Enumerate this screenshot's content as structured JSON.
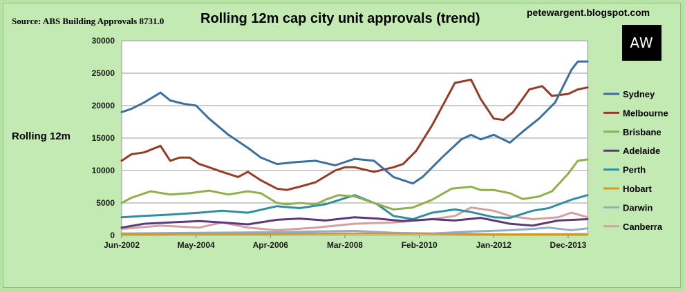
{
  "header": {
    "source": "Source: ABS Building Approvals 8731.0",
    "blog": "petewargent.blogspot.com",
    "logo_text": "AW"
  },
  "chart_data": {
    "type": "line",
    "title": "Rolling 12m cap city unit approvals (trend)",
    "ylabel": "Rolling 12m",
    "xlabel": "",
    "ylim": [
      0,
      30000
    ],
    "yticks": [
      0,
      5000,
      10000,
      15000,
      20000,
      25000,
      30000
    ],
    "xlim": [
      "2002-06",
      "2014-06"
    ],
    "xticks": [
      "Jun-2002",
      "May-2004",
      "Apr-2006",
      "Mar-2008",
      "Feb-2010",
      "Jan-2012",
      "Dec-2013"
    ],
    "grid": "horizontal",
    "legend": "right",
    "series": [
      {
        "name": "Sydney",
        "color": "#3b6fa0",
        "x": [
          "2002-06",
          "2002-09",
          "2003-01",
          "2003-06",
          "2003-09",
          "2004-01",
          "2004-05",
          "2004-09",
          "2005-03",
          "2005-09",
          "2006-01",
          "2006-06",
          "2006-12",
          "2007-06",
          "2007-12",
          "2008-06",
          "2008-12",
          "2009-06",
          "2009-12",
          "2010-03",
          "2010-09",
          "2011-03",
          "2011-06",
          "2011-09",
          "2012-01",
          "2012-06",
          "2012-10",
          "2013-03",
          "2013-08",
          "2014-01",
          "2014-03",
          "2014-06"
        ],
        "y": [
          19000,
          19500,
          20500,
          22000,
          20800,
          20300,
          20000,
          18000,
          15500,
          13500,
          12000,
          11000,
          11300,
          11500,
          10800,
          11800,
          11500,
          9000,
          8000,
          9000,
          12000,
          14800,
          15500,
          14800,
          15500,
          14300,
          16000,
          18000,
          20500,
          25500,
          26800,
          26800
        ]
      },
      {
        "name": "Melbourne",
        "color": "#953b26",
        "x": [
          "2002-06",
          "2002-09",
          "2003-01",
          "2003-06",
          "2003-09",
          "2003-12",
          "2004-03",
          "2004-06",
          "2004-09",
          "2005-01",
          "2005-06",
          "2005-09",
          "2006-01",
          "2006-06",
          "2006-09",
          "2007-01",
          "2007-06",
          "2007-12",
          "2008-03",
          "2008-06",
          "2008-12",
          "2009-06",
          "2009-09",
          "2010-01",
          "2010-06",
          "2011-01",
          "2011-06",
          "2011-09",
          "2012-01",
          "2012-04",
          "2012-07",
          "2012-12",
          "2013-04",
          "2013-07",
          "2013-12",
          "2014-03",
          "2014-06"
        ],
        "y": [
          11500,
          12500,
          12800,
          13800,
          11500,
          12000,
          12000,
          11000,
          10500,
          9800,
          9000,
          9800,
          8500,
          7200,
          7000,
          7500,
          8200,
          10000,
          10500,
          10500,
          9800,
          10500,
          11000,
          13000,
          17000,
          23500,
          24000,
          21000,
          18000,
          17800,
          19000,
          22500,
          23000,
          21500,
          21800,
          22500,
          22800
        ]
      },
      {
        "name": "Brisbane",
        "color": "#8fb04a",
        "x": [
          "2002-06",
          "2002-09",
          "2003-03",
          "2003-09",
          "2004-03",
          "2004-09",
          "2005-03",
          "2005-09",
          "2006-01",
          "2006-06",
          "2006-09",
          "2007-01",
          "2007-06",
          "2007-09",
          "2008-01",
          "2008-06",
          "2008-12",
          "2009-06",
          "2009-12",
          "2010-06",
          "2010-12",
          "2011-06",
          "2011-09",
          "2012-01",
          "2012-06",
          "2012-10",
          "2013-03",
          "2013-07",
          "2013-12",
          "2014-03",
          "2014-06"
        ],
        "y": [
          5000,
          5800,
          6800,
          6300,
          6500,
          6900,
          6300,
          6800,
          6500,
          5000,
          4800,
          5000,
          4800,
          5500,
          6200,
          6000,
          5000,
          4000,
          4300,
          5500,
          7200,
          7500,
          7000,
          7000,
          6500,
          5600,
          6000,
          6800,
          9500,
          11500,
          11700
        ]
      },
      {
        "name": "Adelaide",
        "color": "#5b3a78",
        "x": [
          "2002-06",
          "2003-01",
          "2003-09",
          "2004-06",
          "2005-01",
          "2005-09",
          "2006-06",
          "2007-01",
          "2007-09",
          "2008-06",
          "2009-01",
          "2009-09",
          "2010-06",
          "2011-01",
          "2011-09",
          "2012-06",
          "2013-01",
          "2013-09",
          "2014-06"
        ],
        "y": [
          1200,
          1800,
          2000,
          2200,
          2000,
          1700,
          2400,
          2600,
          2300,
          2800,
          2600,
          2200,
          2500,
          2300,
          2700,
          1800,
          1500,
          2300,
          2500
        ]
      },
      {
        "name": "Perth",
        "color": "#2f8fa0",
        "x": [
          "2002-06",
          "2003-01",
          "2003-09",
          "2004-06",
          "2005-01",
          "2005-09",
          "2006-06",
          "2007-01",
          "2007-09",
          "2008-06",
          "2009-01",
          "2009-06",
          "2009-12",
          "2010-06",
          "2011-01",
          "2011-06",
          "2012-01",
          "2012-06",
          "2013-01",
          "2013-06",
          "2014-01",
          "2014-06"
        ],
        "y": [
          2800,
          3000,
          3200,
          3500,
          3800,
          3500,
          4500,
          4200,
          4800,
          6200,
          4800,
          3000,
          2500,
          3500,
          4000,
          3600,
          2800,
          2700,
          3800,
          4200,
          5500,
          6200
        ]
      },
      {
        "name": "Hobart",
        "color": "#d69a20",
        "x": [
          "2002-06",
          "2004-06",
          "2006-06",
          "2008-06",
          "2010-06",
          "2012-06",
          "2014-06"
        ],
        "y": [
          200,
          250,
          250,
          300,
          280,
          150,
          200
        ]
      },
      {
        "name": "Darwin",
        "color": "#93aec9",
        "x": [
          "2002-06",
          "2004-06",
          "2006-06",
          "2008-06",
          "2009-06",
          "2010-06",
          "2011-06",
          "2012-06",
          "2013-01",
          "2013-06",
          "2014-01",
          "2014-06"
        ],
        "y": [
          300,
          400,
          500,
          700,
          400,
          300,
          600,
          800,
          1000,
          1200,
          800,
          1100
        ]
      },
      {
        "name": "Canberra",
        "color": "#d4a0a0",
        "x": [
          "2002-06",
          "2003-06",
          "2004-06",
          "2005-01",
          "2005-09",
          "2006-06",
          "2007-06",
          "2008-06",
          "2009-06",
          "2010-06",
          "2011-01",
          "2011-06",
          "2012-01",
          "2012-06",
          "2013-01",
          "2013-09",
          "2014-01",
          "2014-06"
        ],
        "y": [
          1000,
          1500,
          1200,
          2000,
          1200,
          800,
          1200,
          1800,
          2000,
          2500,
          3000,
          4300,
          3800,
          3000,
          2500,
          2800,
          3500,
          2800
        ]
      }
    ]
  }
}
